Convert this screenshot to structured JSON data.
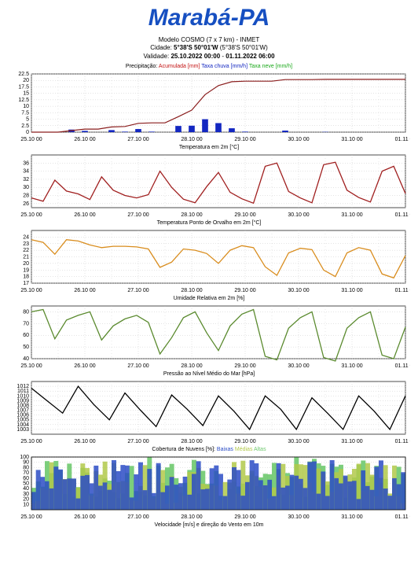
{
  "page": {
    "title": "Marabá-PA",
    "model_line": "Modelo COSMO (7 x 7 km) - INMET",
    "city_line_prefix": "Cidade: ",
    "city_coords_bold": "5°38'S 50°01'W",
    "city_coords_paren": " (5°38'S 50°01'W)",
    "validity_prefix": "Validade: ",
    "validity_start": "25.10.2022 00:00",
    "validity_sep": " - ",
    "validity_end": "01.11.2022 06:00"
  },
  "colors": {
    "grid": "#c8c8c8",
    "axis": "#000000",
    "series_precip": "#8a1d1d",
    "series_rain_rate": "#1327c1",
    "series_snow": "#1aa81a",
    "series_temp": "#a01f1f",
    "series_dew": "#d98d1e",
    "series_rh": "#5a8a2e",
    "series_press": "#000000",
    "cloud_low": "#2b4cc5",
    "cloud_mid": "#b2c94a",
    "cloud_high": "#6ec96e",
    "legend_red": "#c31313",
    "legend_blue": "#1327c1",
    "legend_green": "#1aa81a"
  },
  "x_axis": {
    "ticks": [
      "25.10 00",
      "26.10 00",
      "27.10 00",
      "28.10 00",
      "29.10 00",
      "30.10 00",
      "31.10 00",
      "01.11 00"
    ],
    "count": 8
  },
  "charts": {
    "precip": {
      "legend_label": "Precipitação: ",
      "legend_items": [
        {
          "color": "legend_red",
          "text": "Acumulada [mm]"
        },
        {
          "color": "legend_blue",
          "text": "Taxa chuva [mm/h]"
        },
        {
          "color": "legend_green",
          "text": "Taxa neve [mm/h]"
        }
      ],
      "ylim": [
        0,
        22.5
      ],
      "yticks": [
        0,
        2.5,
        5,
        7.5,
        10,
        12.5,
        15,
        17.5,
        20,
        22.5
      ],
      "height": 92,
      "series_accum": [
        0,
        0,
        0,
        0.6,
        1.2,
        1.2,
        2.0,
        2.2,
        3.4,
        3.6,
        3.6,
        6.0,
        8.5,
        14.5,
        18.0,
        19.5,
        19.7,
        19.7,
        19.7,
        20.3,
        20.3,
        20.3,
        20.4,
        20.4,
        20.4,
        20.4,
        20.4,
        20.4,
        20.4
      ],
      "bars": [
        [
          2,
          0
        ],
        [
          3,
          1.0
        ],
        [
          4,
          0.5
        ],
        [
          5,
          0
        ],
        [
          6,
          0.8
        ],
        [
          7,
          0.2
        ],
        [
          8,
          1.2
        ],
        [
          9,
          0.2
        ],
        [
          10,
          0
        ],
        [
          11,
          2.4
        ],
        [
          12,
          2.5
        ],
        [
          13,
          5.0
        ],
        [
          14,
          3.5
        ],
        [
          15,
          1.5
        ],
        [
          16,
          0.2
        ],
        [
          17,
          0
        ],
        [
          18,
          0
        ],
        [
          19,
          0.6
        ],
        [
          20,
          0
        ],
        [
          21,
          0
        ],
        [
          22,
          0.1
        ]
      ]
    },
    "temp": {
      "title": "Temperatura em 2m [°C]",
      "ylim": [
        25,
        38
      ],
      "yticks": [
        26,
        28,
        30,
        32,
        34,
        36
      ],
      "height": 85,
      "series": [
        27.4,
        26.6,
        31.8,
        29.1,
        28.4,
        27.0,
        32.6,
        29.3,
        28.0,
        27.4,
        28.2,
        34.0,
        30.0,
        27.1,
        26.2,
        30.2,
        33.7,
        28.8,
        27.2,
        26.1,
        35.2,
        36.0,
        29.0,
        27.4,
        26.2,
        35.6,
        36.2,
        29.3,
        27.5,
        26.4,
        34.0,
        35.2,
        28.5
      ]
    },
    "dew": {
      "title": "Temperatura Ponto de Orvalho em 2m [°C]",
      "ylim": [
        17,
        25
      ],
      "yticks": [
        17,
        18,
        19,
        20,
        21,
        22,
        23,
        24
      ],
      "height": 85,
      "series": [
        23.6,
        23.2,
        21.4,
        23.6,
        23.4,
        22.8,
        22.4,
        22.6,
        22.6,
        22.5,
        22.2,
        19.4,
        20.2,
        22.2,
        22.0,
        21.5,
        20.0,
        22.0,
        22.7,
        22.4,
        19.5,
        18.2,
        21.6,
        22.3,
        22.1,
        19.0,
        18.0,
        21.6,
        22.4,
        22.0,
        18.4,
        17.8,
        21.2
      ]
    },
    "rh": {
      "title": "Umidade Relativa em 2m [%]",
      "ylim": [
        40,
        85
      ],
      "yticks": [
        40,
        50,
        60,
        70,
        80
      ],
      "height": 85,
      "series_raw": [
        80,
        82,
        57,
        73,
        77,
        80,
        56,
        68,
        74,
        77,
        71,
        44,
        58,
        75,
        80,
        62,
        47,
        68,
        78,
        82,
        42,
        39,
        66,
        75,
        80,
        41,
        38,
        66,
        75,
        80,
        43,
        40,
        67
      ]
    },
    "press": {
      "title": "Pressão ao Nível Médio do Mar [hPa]",
      "ylim": [
        1002,
        1013
      ],
      "yticks": [
        1003,
        1004,
        1005,
        1006,
        1007,
        1008,
        1009,
        1010,
        1011,
        1012
      ],
      "height": 85,
      "series": [
        1011.6,
        1009.0,
        1006.4,
        1012.0,
        1008.2,
        1005.0,
        1010.6,
        1007.0,
        1003.6,
        1010.2,
        1007.2,
        1003.8,
        1010.0,
        1006.8,
        1003.0,
        1010.0,
        1007.2,
        1003.0,
        1009.6,
        1006.4,
        1003.0,
        1010.0,
        1006.8,
        1003.0,
        1010.0
      ]
    },
    "cloud": {
      "title": "Cobertura de Nuvens [%]: ",
      "legend_items": [
        {
          "color": "cloud_low",
          "text": "Baixas"
        },
        {
          "color": "cloud_mid",
          "text": "Médias"
        },
        {
          "color": "cloud_high",
          "text": "Altas"
        }
      ],
      "ylim": [
        0,
        100
      ],
      "yticks": [
        10,
        20,
        30,
        40,
        50,
        60,
        70,
        80,
        90,
        100
      ],
      "height": 85
    }
  },
  "footer": "Velocidade [m/s] e direção do Vento em 10m"
}
